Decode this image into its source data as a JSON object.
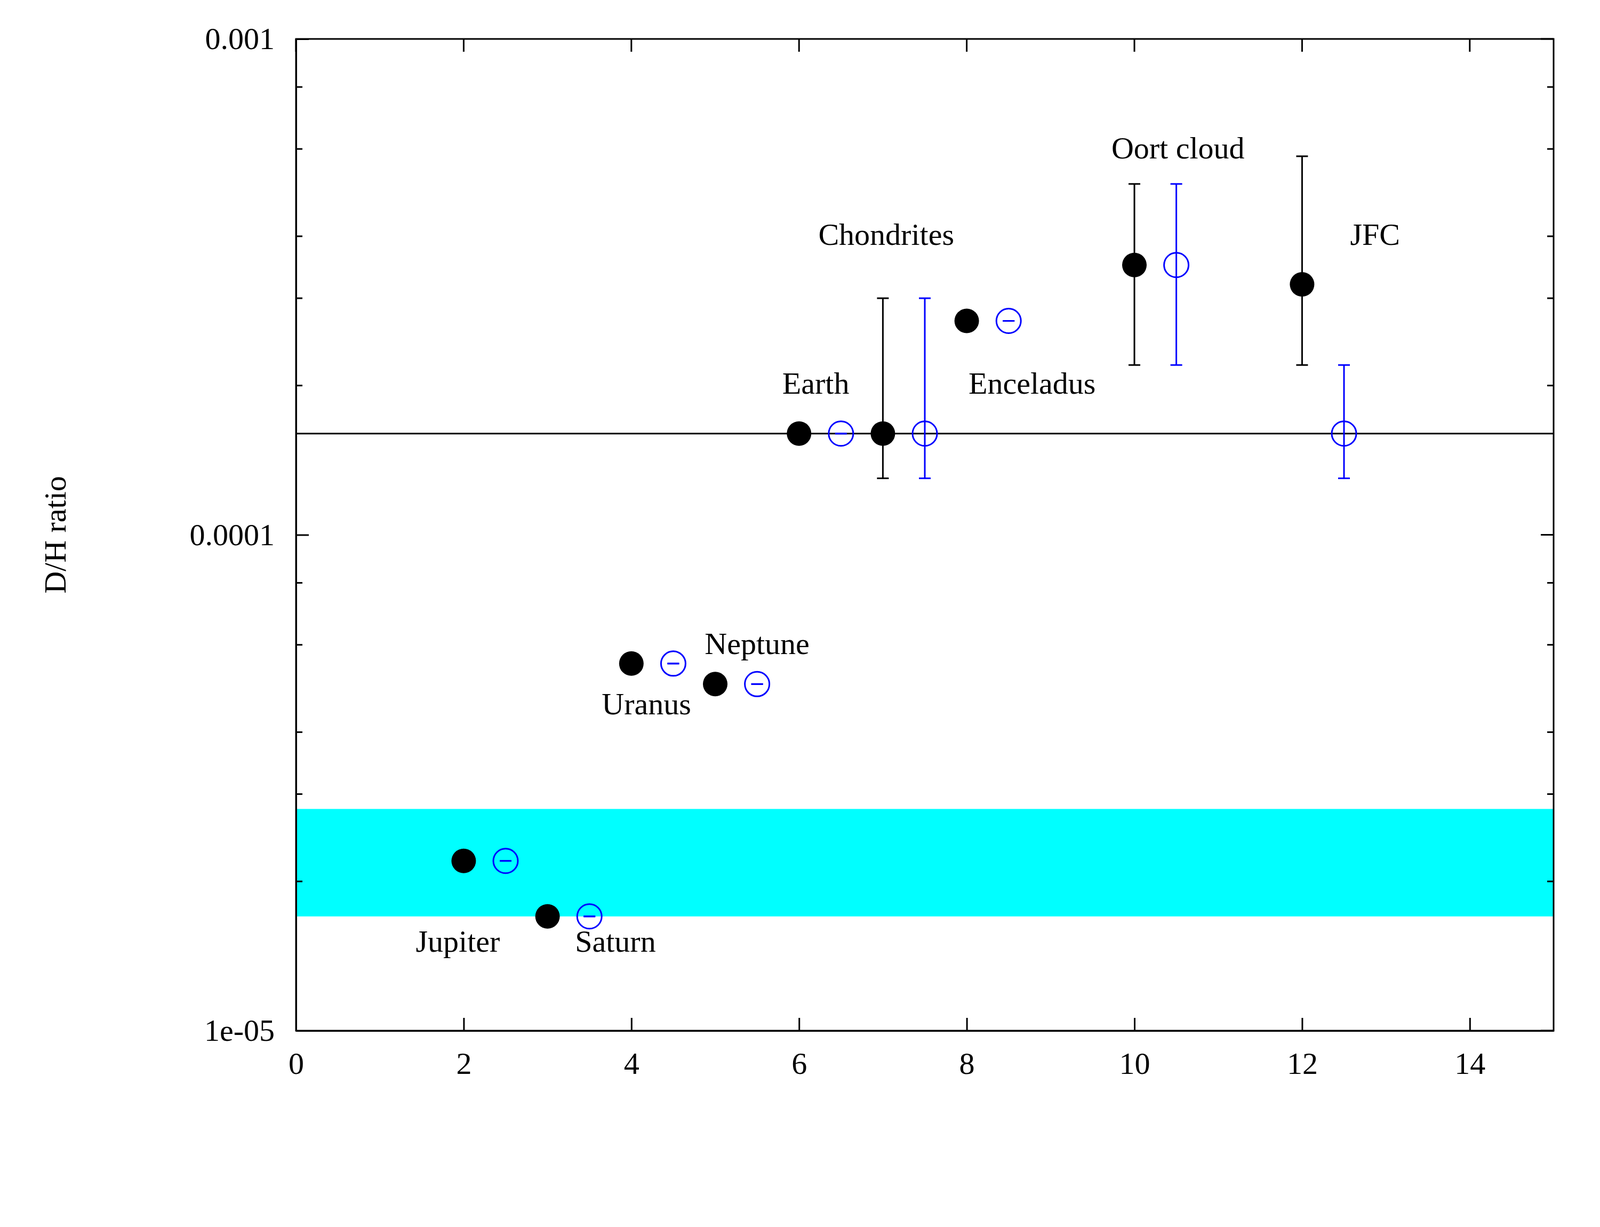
{
  "chart_data": {
    "type": "scatter",
    "y_label": "D/H ratio",
    "log": "y",
    "xlim": [
      0,
      15
    ],
    "xticks": [
      0,
      2,
      4,
      6,
      8,
      10,
      12,
      14
    ],
    "ylim": [
      1e-05,
      0.001
    ],
    "yticks": [
      {
        "value": 1e-05,
        "label": "1e-05"
      },
      0.0001,
      0.001
    ],
    "yminor": [
      2e-05,
      3e-05,
      4e-05,
      6e-05,
      8e-05,
      0.0002,
      0.0003,
      0.0004,
      0.0006,
      0.0008
    ],
    "band": [
      1.7e-05,
      2.8e-05
    ],
    "hline": 0.00016,
    "series": [
      {
        "color": "#000000",
        "marker": "circle",
        "x": [
          2,
          3,
          4,
          5,
          6,
          7,
          8,
          10,
          12
        ],
        "values": [
          2.2e-05,
          1.7e-05,
          5.5e-05,
          5e-05,
          0.00016,
          0.00016,
          0.00027,
          0.00035,
          0.00032
        ],
        "lower": [
          2.2e-05,
          1.7e-05,
          5.5e-05,
          5e-05,
          0.00016,
          0.00013,
          0.00027,
          0.00022,
          0.00022
        ],
        "upper": [
          2.2e-05,
          1.7e-05,
          5.5e-05,
          5e-05,
          0.00016,
          0.0003,
          0.00027,
          0.00051,
          0.00058
        ]
      },
      {
        "color": "#0000ff",
        "marker": "open_circle",
        "x": [
          2.5,
          3.5,
          4.5,
          5.5,
          6.5,
          7.5,
          8.5,
          10.5,
          12.5
        ],
        "values": [
          2.2e-05,
          1.7e-05,
          5.5e-05,
          5e-05,
          0.00016,
          0.00016,
          0.00027,
          0.00035,
          0.00016
        ],
        "lower": [
          2.2e-05,
          1.7e-05,
          5.5e-05,
          5e-05,
          0.00016,
          0.00013,
          0.00027,
          0.00022,
          0.00013
        ],
        "upper": [
          2.2e-05,
          1.7e-05,
          5.5e-05,
          5e-05,
          0.00016,
          0.0003,
          0.00027,
          0.00051,
          0.00022
        ]
      }
    ],
    "annotations": [
      {
        "text": "Jupiter",
        "x": 1.93,
        "y": 1.49e-05
      },
      {
        "text": "Saturn",
        "x": 3.81,
        "y": 1.49e-05
      },
      {
        "text": "Uranus",
        "x": 4.18,
        "y": 4.49e-05
      },
      {
        "text": "Neptune",
        "x": 5.5,
        "y": 5.94e-05
      },
      {
        "text": "Earth",
        "x": 6.2,
        "y": 0.000199
      },
      {
        "text": "Chondrites",
        "x": 7.04,
        "y": 0.000397
      },
      {
        "text": "Enceladus",
        "x": 8.78,
        "y": 0.000199
      },
      {
        "text": "Oort cloud",
        "x": 10.52,
        "y": 0.000594
      },
      {
        "text": "JFC",
        "x": 12.87,
        "y": 0.000397
      }
    ]
  }
}
